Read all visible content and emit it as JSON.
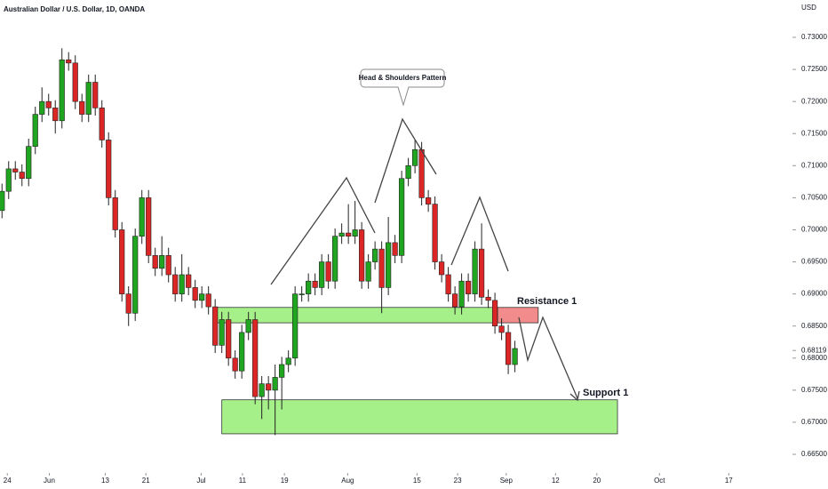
{
  "chart_data": {
    "type": "candlestick",
    "title": "Australian Dollar / U.S. Dollar, 1D, OANDA",
    "y_axis_label": "USD",
    "colors": {
      "up": "#1fa51f",
      "down": "#dc2626"
    },
    "open": [
      0.703,
      0.706,
      0.7095,
      0.709,
      0.708,
      0.713,
      0.718,
      0.72,
      0.719,
      0.717,
      0.7265,
      0.726,
      0.72,
      0.718,
      0.723,
      0.719,
      0.714,
      0.705,
      0.7,
      0.69,
      0.687,
      0.699,
      0.705,
      0.696,
      0.694,
      0.696,
      0.693,
      0.69,
      0.693,
      0.691,
      0.689,
      0.69,
      0.688,
      0.682,
      0.686,
      0.68,
      0.678,
      0.684,
      0.686,
      0.674,
      0.676,
      0.675,
      0.677,
      0.679,
      0.68,
      0.69,
      0.69,
      0.692,
      0.691,
      0.695,
      0.692,
      0.699,
      0.6995,
      0.699,
      0.7,
      0.692,
      0.695,
      0.697,
      0.691,
      0.698,
      0.696,
      0.708,
      0.71,
      0.7125,
      0.705,
      0.704,
      0.695,
      0.693,
      0.69,
      0.688,
      0.692,
      0.69,
      0.697,
      0.6895,
      0.689,
      0.685,
      0.684,
      0.679
    ],
    "high": [
      0.7072,
      0.7107,
      0.7107,
      0.7102,
      0.7142,
      0.7192,
      0.7222,
      0.7212,
      0.7202,
      0.7283,
      0.7277,
      0.7272,
      0.7212,
      0.7242,
      0.7242,
      0.7202,
      0.7152,
      0.7062,
      0.7012,
      0.6912,
      0.7002,
      0.7062,
      0.7062,
      0.6972,
      0.699,
      0.6972,
      0.6942,
      0.6962,
      0.6942,
      0.6922,
      0.6912,
      0.6912,
      0.6892,
      0.6872,
      0.6872,
      0.6812,
      0.6852,
      0.6872,
      0.6872,
      0.6772,
      0.6772,
      0.679,
      0.6802,
      0.6812,
      0.6912,
      0.6912,
      0.6932,
      0.6932,
      0.6962,
      0.6962,
      0.7002,
      0.701,
      0.704,
      0.7045,
      0.7012,
      0.6962,
      0.6982,
      0.6982,
      0.702,
      0.6992,
      0.7092,
      0.7112,
      0.714,
      0.7137,
      0.7062,
      0.7052,
      0.6962,
      0.6942,
      0.6912,
      0.6932,
      0.6932,
      0.6982,
      0.701,
      0.6907,
      0.6902,
      0.6862,
      0.6852,
      0.6827
    ],
    "low": [
      0.7018,
      0.7048,
      0.7078,
      0.7068,
      0.7068,
      0.7118,
      0.7168,
      0.7178,
      0.715,
      0.7158,
      0.7248,
      0.7188,
      0.7168,
      0.7168,
      0.7178,
      0.7128,
      0.7038,
      0.6988,
      0.6888,
      0.685,
      0.6858,
      0.6978,
      0.6948,
      0.6928,
      0.6928,
      0.6918,
      0.6888,
      0.6888,
      0.6898,
      0.6878,
      0.6878,
      0.6868,
      0.6808,
      0.6808,
      0.6788,
      0.6768,
      0.6768,
      0.6828,
      0.6728,
      0.6705,
      0.672,
      0.668,
      0.672,
      0.6778,
      0.6788,
      0.6888,
      0.6888,
      0.6898,
      0.6898,
      0.6908,
      0.6908,
      0.6978,
      0.6978,
      0.6978,
      0.6908,
      0.6908,
      0.6938,
      0.687,
      0.6898,
      0.6948,
      0.6948,
      0.7068,
      0.7088,
      0.7038,
      0.7028,
      0.6938,
      0.6918,
      0.6888,
      0.6868,
      0.6868,
      0.6888,
      0.6888,
      0.6883,
      0.6878,
      0.6838,
      0.6828,
      0.6775,
      0.6778
    ],
    "close": [
      0.706,
      0.7095,
      0.709,
      0.708,
      0.713,
      0.718,
      0.72,
      0.719,
      0.717,
      0.7265,
      0.726,
      0.72,
      0.718,
      0.723,
      0.719,
      0.714,
      0.705,
      0.7,
      0.69,
      0.687,
      0.699,
      0.705,
      0.696,
      0.694,
      0.696,
      0.693,
      0.69,
      0.693,
      0.691,
      0.689,
      0.69,
      0.688,
      0.682,
      0.686,
      0.68,
      0.678,
      0.684,
      0.686,
      0.674,
      0.676,
      0.675,
      0.677,
      0.679,
      0.68,
      0.69,
      0.69,
      0.692,
      0.691,
      0.695,
      0.692,
      0.699,
      0.6995,
      0.699,
      0.7,
      0.692,
      0.695,
      0.697,
      0.691,
      0.698,
      0.696,
      0.708,
      0.71,
      0.7125,
      0.705,
      0.704,
      0.695,
      0.693,
      0.69,
      0.688,
      0.692,
      0.69,
      0.697,
      0.6895,
      0.689,
      0.685,
      0.684,
      0.679,
      0.6815
    ],
    "xlim": [
      -0.3,
      118.4
    ],
    "xticks": [
      {
        "value": 0.8,
        "label": "24"
      },
      {
        "value": 7.1,
        "label": "Jun"
      },
      {
        "value": 15.5,
        "label": "13"
      },
      {
        "value": 21.6,
        "label": "21"
      },
      {
        "value": 29.9,
        "label": "Jul"
      },
      {
        "value": 36.1,
        "label": "11"
      },
      {
        "value": 42.4,
        "label": "19"
      },
      {
        "value": 51.9,
        "label": "Aug"
      },
      {
        "value": 62.3,
        "label": "15"
      },
      {
        "value": 68.4,
        "label": "23"
      },
      {
        "value": 75.7,
        "label": "Sep"
      },
      {
        "value": 83.1,
        "label": "12"
      },
      {
        "value": 89.3,
        "label": "20"
      },
      {
        "value": 98.7,
        "label": "Oct"
      },
      {
        "value": 109.1,
        "label": "17"
      }
    ],
    "ylim": [
      0.66237,
      0.73582
    ],
    "yticks": [
      {
        "value": 0.665,
        "label": "0.66500"
      },
      {
        "value": 0.67,
        "label": "0.67000"
      },
      {
        "value": 0.675,
        "label": "0.67500"
      },
      {
        "value": 0.68,
        "label": "0.68000"
      },
      {
        "value": 0.68119,
        "label": "0.68119"
      },
      {
        "value": 0.685,
        "label": "0.68500"
      },
      {
        "value": 0.69,
        "label": "0.69000"
      },
      {
        "value": 0.695,
        "label": "0.69500"
      },
      {
        "value": 0.7,
        "label": "0.70000"
      },
      {
        "value": 0.705,
        "label": "0.70500"
      },
      {
        "value": 0.71,
        "label": "0.71000"
      },
      {
        "value": 0.715,
        "label": "0.71500"
      },
      {
        "value": 0.72,
        "label": "0.72000"
      },
      {
        "value": 0.725,
        "label": "0.72500"
      },
      {
        "value": 0.73,
        "label": "0.73000"
      }
    ],
    "zones": [
      {
        "from": 32.0,
        "to": 74.4,
        "low": 0.6855,
        "high": 0.6879,
        "color": "#a6f08a"
      },
      {
        "from": 74.4,
        "to": 80.5,
        "low": 0.6855,
        "high": 0.6879,
        "color": "#f28b8b"
      },
      {
        "from": 33.0,
        "to": 92.4,
        "low": 0.6682,
        "high": 0.6735,
        "color": "#a6f08a"
      }
    ],
    "annotations": {
      "pattern": "Head & Shoulders Pattern",
      "resistance": "Resistance 1",
      "support": "Support 1"
    }
  }
}
